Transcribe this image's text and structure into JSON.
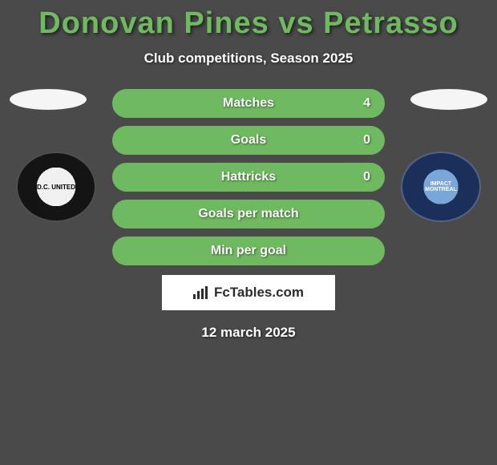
{
  "header": {
    "title": "Donovan Pines vs Petrasso",
    "title_color": "#6fb960",
    "subtitle": "Club competitions, Season 2025",
    "date": "12 march 2025"
  },
  "stats": [
    {
      "label": "Matches",
      "value_right": "4",
      "fill": "#6fb960",
      "border": "#6fb960"
    },
    {
      "label": "Goals",
      "value_right": "0",
      "fill": "#6fb960",
      "border": "#6fb960"
    },
    {
      "label": "Hattricks",
      "value_right": "0",
      "fill": "#6fb960",
      "border": "#6fb960"
    },
    {
      "label": "Goals per match",
      "value_right": "",
      "fill": "#6fb960",
      "border": "#6fb960"
    },
    {
      "label": "Min per goal",
      "value_right": "",
      "fill": "#6fb960",
      "border": "#6fb960"
    }
  ],
  "clubs": {
    "left": {
      "name": "D.C. UNITED",
      "badge_bg_outer": "#141414",
      "badge_bg_inner": "#f0f0f0"
    },
    "right": {
      "name": "IMPACT MONTRÉAL",
      "badge_bg_outer": "#1a2f5a",
      "badge_bg_inner": "#7aa7d8"
    }
  },
  "branding": {
    "site": "FcTables.com"
  },
  "style": {
    "background": "#4a4a4a",
    "text_color": "#ffffff",
    "stat_row_width": 340,
    "stat_row_height": 36,
    "title_fontsize": 38,
    "subtitle_fontsize": 17
  }
}
